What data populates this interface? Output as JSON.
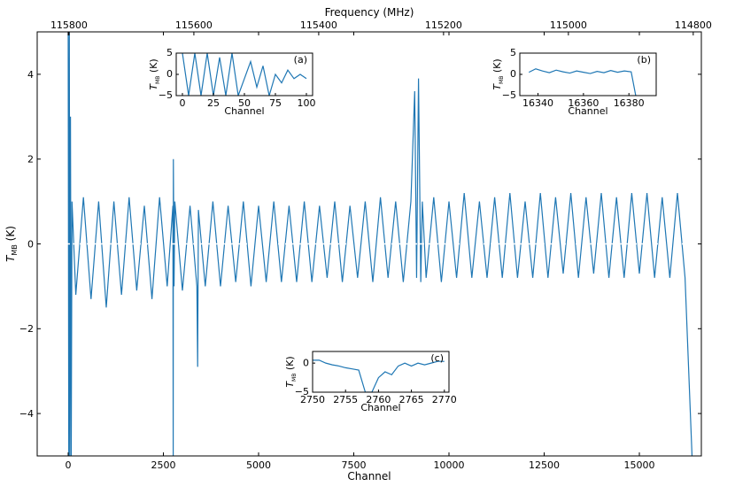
{
  "chart_data": [
    {
      "type": "line",
      "xlabel": "Channel",
      "x2label": "Frequency (MHz)",
      "ylabel": {
        "symbol": "T",
        "subscript": "MB",
        "unit": "(K)"
      },
      "color": "#1f77b4",
      "hline": 0,
      "xlim": [
        -814,
        16628
      ],
      "xticks": [
        0,
        2500,
        5000,
        7500,
        10000,
        12500,
        15000
      ],
      "x2lim": [
        115851,
        114787
      ],
      "x2ticks": [
        115800,
        115600,
        115400,
        115200,
        115000,
        114800
      ],
      "ylim": [
        -5,
        5
      ],
      "yticks": [
        {
          "value": -4,
          "label": "−4"
        },
        {
          "value": -2,
          "label": "−2"
        },
        0,
        2,
        4
      ],
      "x": [
        0,
        15,
        30,
        45,
        60,
        80,
        100,
        200,
        400,
        600,
        800,
        1000,
        1200,
        1400,
        1600,
        1800,
        2000,
        2200,
        2400,
        2600,
        2750,
        2758,
        2762,
        2780,
        2800,
        3000,
        3200,
        3380,
        3400,
        3420,
        3600,
        3800,
        4000,
        4200,
        4400,
        4600,
        4800,
        5000,
        5200,
        5400,
        5600,
        5800,
        6000,
        6200,
        6400,
        6600,
        6800,
        7000,
        7200,
        7400,
        7600,
        7800,
        8000,
        8200,
        8400,
        8600,
        8800,
        9000,
        9100,
        9150,
        9200,
        9260,
        9300,
        9400,
        9600,
        9800,
        10000,
        10200,
        10400,
        10600,
        10800,
        11000,
        11200,
        11400,
        11600,
        11800,
        12000,
        12200,
        12400,
        12600,
        12800,
        13000,
        13200,
        13400,
        13600,
        13800,
        14000,
        14200,
        14400,
        14600,
        14800,
        15000,
        15200,
        15400,
        15600,
        15800,
        16000,
        16200,
        16383
      ],
      "values": [
        5,
        -5,
        5,
        -5,
        3,
        -5,
        1.0,
        -1.2,
        1.1,
        -1.3,
        1.0,
        -1.5,
        1.0,
        -1.2,
        1.1,
        -1.1,
        0.9,
        -1.3,
        1.1,
        -1.0,
        0.9,
        -5,
        2,
        -1.0,
        1.0,
        -1.1,
        0.9,
        -1.0,
        -2.9,
        0.8,
        -1.0,
        1.0,
        -1.0,
        0.9,
        -0.9,
        1.0,
        -1.0,
        0.9,
        -0.9,
        1.0,
        -0.9,
        0.9,
        -0.9,
        1.0,
        -0.9,
        0.9,
        -0.8,
        1.0,
        -0.9,
        0.9,
        -0.8,
        1.0,
        -0.9,
        1.1,
        -0.8,
        1.0,
        -0.9,
        1.0,
        3.6,
        -0.8,
        3.9,
        -0.9,
        1.0,
        -0.8,
        1.1,
        -0.9,
        1.0,
        -0.8,
        1.2,
        -0.8,
        1.0,
        -0.8,
        1.1,
        -0.8,
        1.2,
        -0.8,
        1.0,
        -0.8,
        1.2,
        -0.8,
        1.1,
        -0.7,
        1.2,
        -0.8,
        1.1,
        -0.7,
        1.2,
        -0.8,
        1.1,
        -0.8,
        1.2,
        -0.7,
        1.2,
        -0.8,
        1.1,
        -0.8,
        1.2,
        -0.8,
        -5
      ]
    },
    {
      "type": "line",
      "panel": "(a)",
      "xlabel": "Channel",
      "ylabel": {
        "symbol": "T",
        "subscript": "MB",
        "unit": "(K)"
      },
      "color": "#1f77b4",
      "xlim": [
        -5,
        105
      ],
      "xticks": [
        0,
        25,
        50,
        75,
        100
      ],
      "ylim": [
        -5,
        5
      ],
      "yticks": [
        {
          "value": -5,
          "label": "−5"
        },
        0,
        5
      ],
      "x": [
        0,
        5,
        10,
        15,
        20,
        25,
        30,
        35,
        40,
        45,
        50,
        55,
        60,
        65,
        70,
        75,
        80,
        85,
        90,
        95,
        100
      ],
      "values": [
        5,
        -5,
        5,
        -5,
        5,
        -5,
        4,
        -5,
        5,
        -5,
        -1,
        3,
        -3,
        2,
        -5,
        0,
        -2,
        1,
        -1,
        0,
        -1
      ]
    },
    {
      "type": "line",
      "panel": "(b)",
      "xlabel": "Channel",
      "ylabel": {
        "symbol": "T",
        "subscript": "MB",
        "unit": "(K)"
      },
      "color": "#1f77b4",
      "xlim": [
        16332,
        16392
      ],
      "xticks": [
        16340,
        16360,
        16380
      ],
      "ylim": [
        -5,
        5
      ],
      "yticks": [
        {
          "value": -5,
          "label": "−5"
        },
        0,
        5
      ],
      "x": [
        16336,
        16339,
        16342,
        16345,
        16348,
        16351,
        16354,
        16357,
        16360,
        16363,
        16366,
        16369,
        16372,
        16375,
        16378,
        16381,
        16383
      ],
      "values": [
        0.5,
        1.3,
        0.8,
        0.4,
        1.0,
        0.6,
        0.3,
        0.8,
        0.5,
        0.2,
        0.7,
        0.4,
        0.9,
        0.5,
        0.8,
        0.6,
        -5
      ]
    },
    {
      "type": "line",
      "panel": "(c)",
      "xlabel": "Channel",
      "ylabel": {
        "symbol": "T",
        "subscript": "MB",
        "unit": "(K)"
      },
      "color": "#1f77b4",
      "xlim": [
        2750,
        2770.7
      ],
      "xticks": [
        2750,
        2755,
        2760,
        2765,
        2770
      ],
      "ylim": [
        -5,
        2
      ],
      "yticks": [
        {
          "value": -5,
          "label": "−5"
        },
        0
      ],
      "x": [
        2750,
        2751,
        2752,
        2753,
        2754,
        2755,
        2756,
        2757,
        2758,
        2759,
        2760,
        2761,
        2762,
        2763,
        2764,
        2765,
        2766,
        2767,
        2768,
        2769,
        2770
      ],
      "values": [
        0.5,
        0.5,
        0,
        -0.3,
        -0.5,
        -0.8,
        -1,
        -1.2,
        -5,
        -5,
        -2.5,
        -1.5,
        -2,
        -0.5,
        0,
        -0.5,
        0,
        -0.3,
        0,
        0.3,
        0.3
      ]
    }
  ]
}
